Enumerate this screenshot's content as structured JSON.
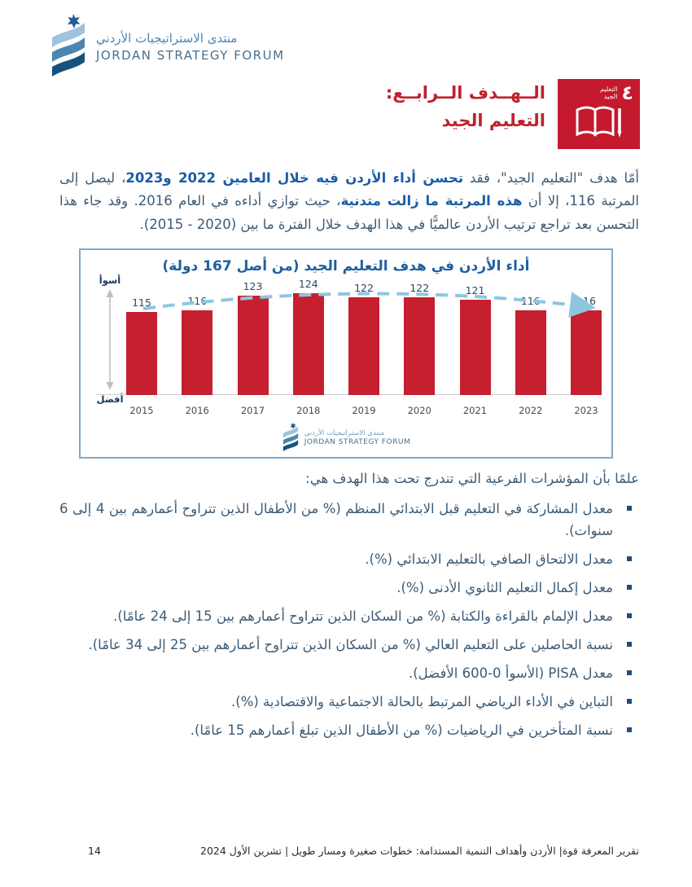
{
  "logo": {
    "arabic": "منتدى الاستراتيجيات الأردني",
    "english": "JORDAN STRATEGY FORUM"
  },
  "goal_heading": {
    "line1": "الــهــدف  الــرابــع:",
    "line2": "التعليم الجيد",
    "color": "#c0222e"
  },
  "sdg_badge": {
    "number": "٤",
    "label_line1": "التعليم",
    "label_line2": "الجيد",
    "background_color": "#c5192d",
    "icon": "open-book-with-pencil"
  },
  "intro_paragraph": {
    "segments": [
      {
        "text": "أمّا هدف \"التعليم الجيد\"، فقد ",
        "bold": false
      },
      {
        "text": "تحسن أداء الأردن فيه خلال العامين 2022 و2023",
        "bold": true
      },
      {
        "text": "، ليصل إلى المرتبة 116، إلا أن ",
        "bold": false
      },
      {
        "text": "هذه المرتبة ما زالت متدنية",
        "bold": true
      },
      {
        "text": "، حيث توازي أداءه في العام 2016. وقد جاء هذا التحسن بعد تراجع ترتيب الأردن عالميًّا في هذا الهدف خلال الفترة ما بين (⁦2015 - 2020⁩).",
        "bold": false
      }
    ]
  },
  "chart_data": {
    "type": "bar",
    "title": "أداء الأردن في هدف التعليم الجيد (من أصل 167 دولة)",
    "categories": [
      "2015",
      "2016",
      "2017",
      "2018",
      "2019",
      "2020",
      "2021",
      "2022",
      "2023"
    ],
    "values": [
      115,
      116,
      123,
      124,
      122,
      122,
      121,
      116,
      116
    ],
    "axis_top_label": "أسوأ",
    "axis_bottom_label": "أفضل",
    "bar_color": "#c51f30",
    "value_label_color": "#2c4a66",
    "trend_line_color": "#8fc6de",
    "trend_line_style": "dashed arc with arrow",
    "ylim": [
      75,
      130
    ],
    "grid": false,
    "legend": "none",
    "source_logo": {
      "arabic": "منتدى الاستراتيجيات الأردني",
      "english": "JORDAN STRATEGY FORUM"
    }
  },
  "indicators": {
    "intro": "علمًا بأن المؤشرات الفرعية التي تندرج تحت هذا الهدف هي:",
    "items": [
      "معدل المشاركة في التعليم قبل الابتدائي المنظم (% من الأطفال الذين تتراوح أعمارهم بين 4 إلى 6 سنوات).",
      "معدل الالتحاق الصافي بالتعليم الابتدائي (%).",
      "معدل إكمال التعليم الثانوي الأدنى (%).",
      "معدل الإلمام بالقراءة والكتابة (% من السكان الذين تتراوح أعمارهم بين 15 إلى 24 عامًا).",
      "نسبة الحاصلين على التعليم العالي (% من السكان الذين تتراوح أعمارهم بين 25 إلى 34 عامًا).",
      "معدل PISA (الأسوأ 0-600 الأفضل).",
      "التباين في الأداء الرياضي المرتبط بالحالة الاجتماعية والاقتصادية (%).",
      "نسبة المتأخرين في الرياضيات (% من الأطفال الذين تبلغ أعمارهم 15 عامًا)."
    ]
  },
  "footer": {
    "page_number": "14",
    "text": "تقرير المعرفة قوة| الأردن وأهداف التنمية المستدامة: خطوات صغيرة ومسار طويل | تشرين الأول 2024"
  }
}
